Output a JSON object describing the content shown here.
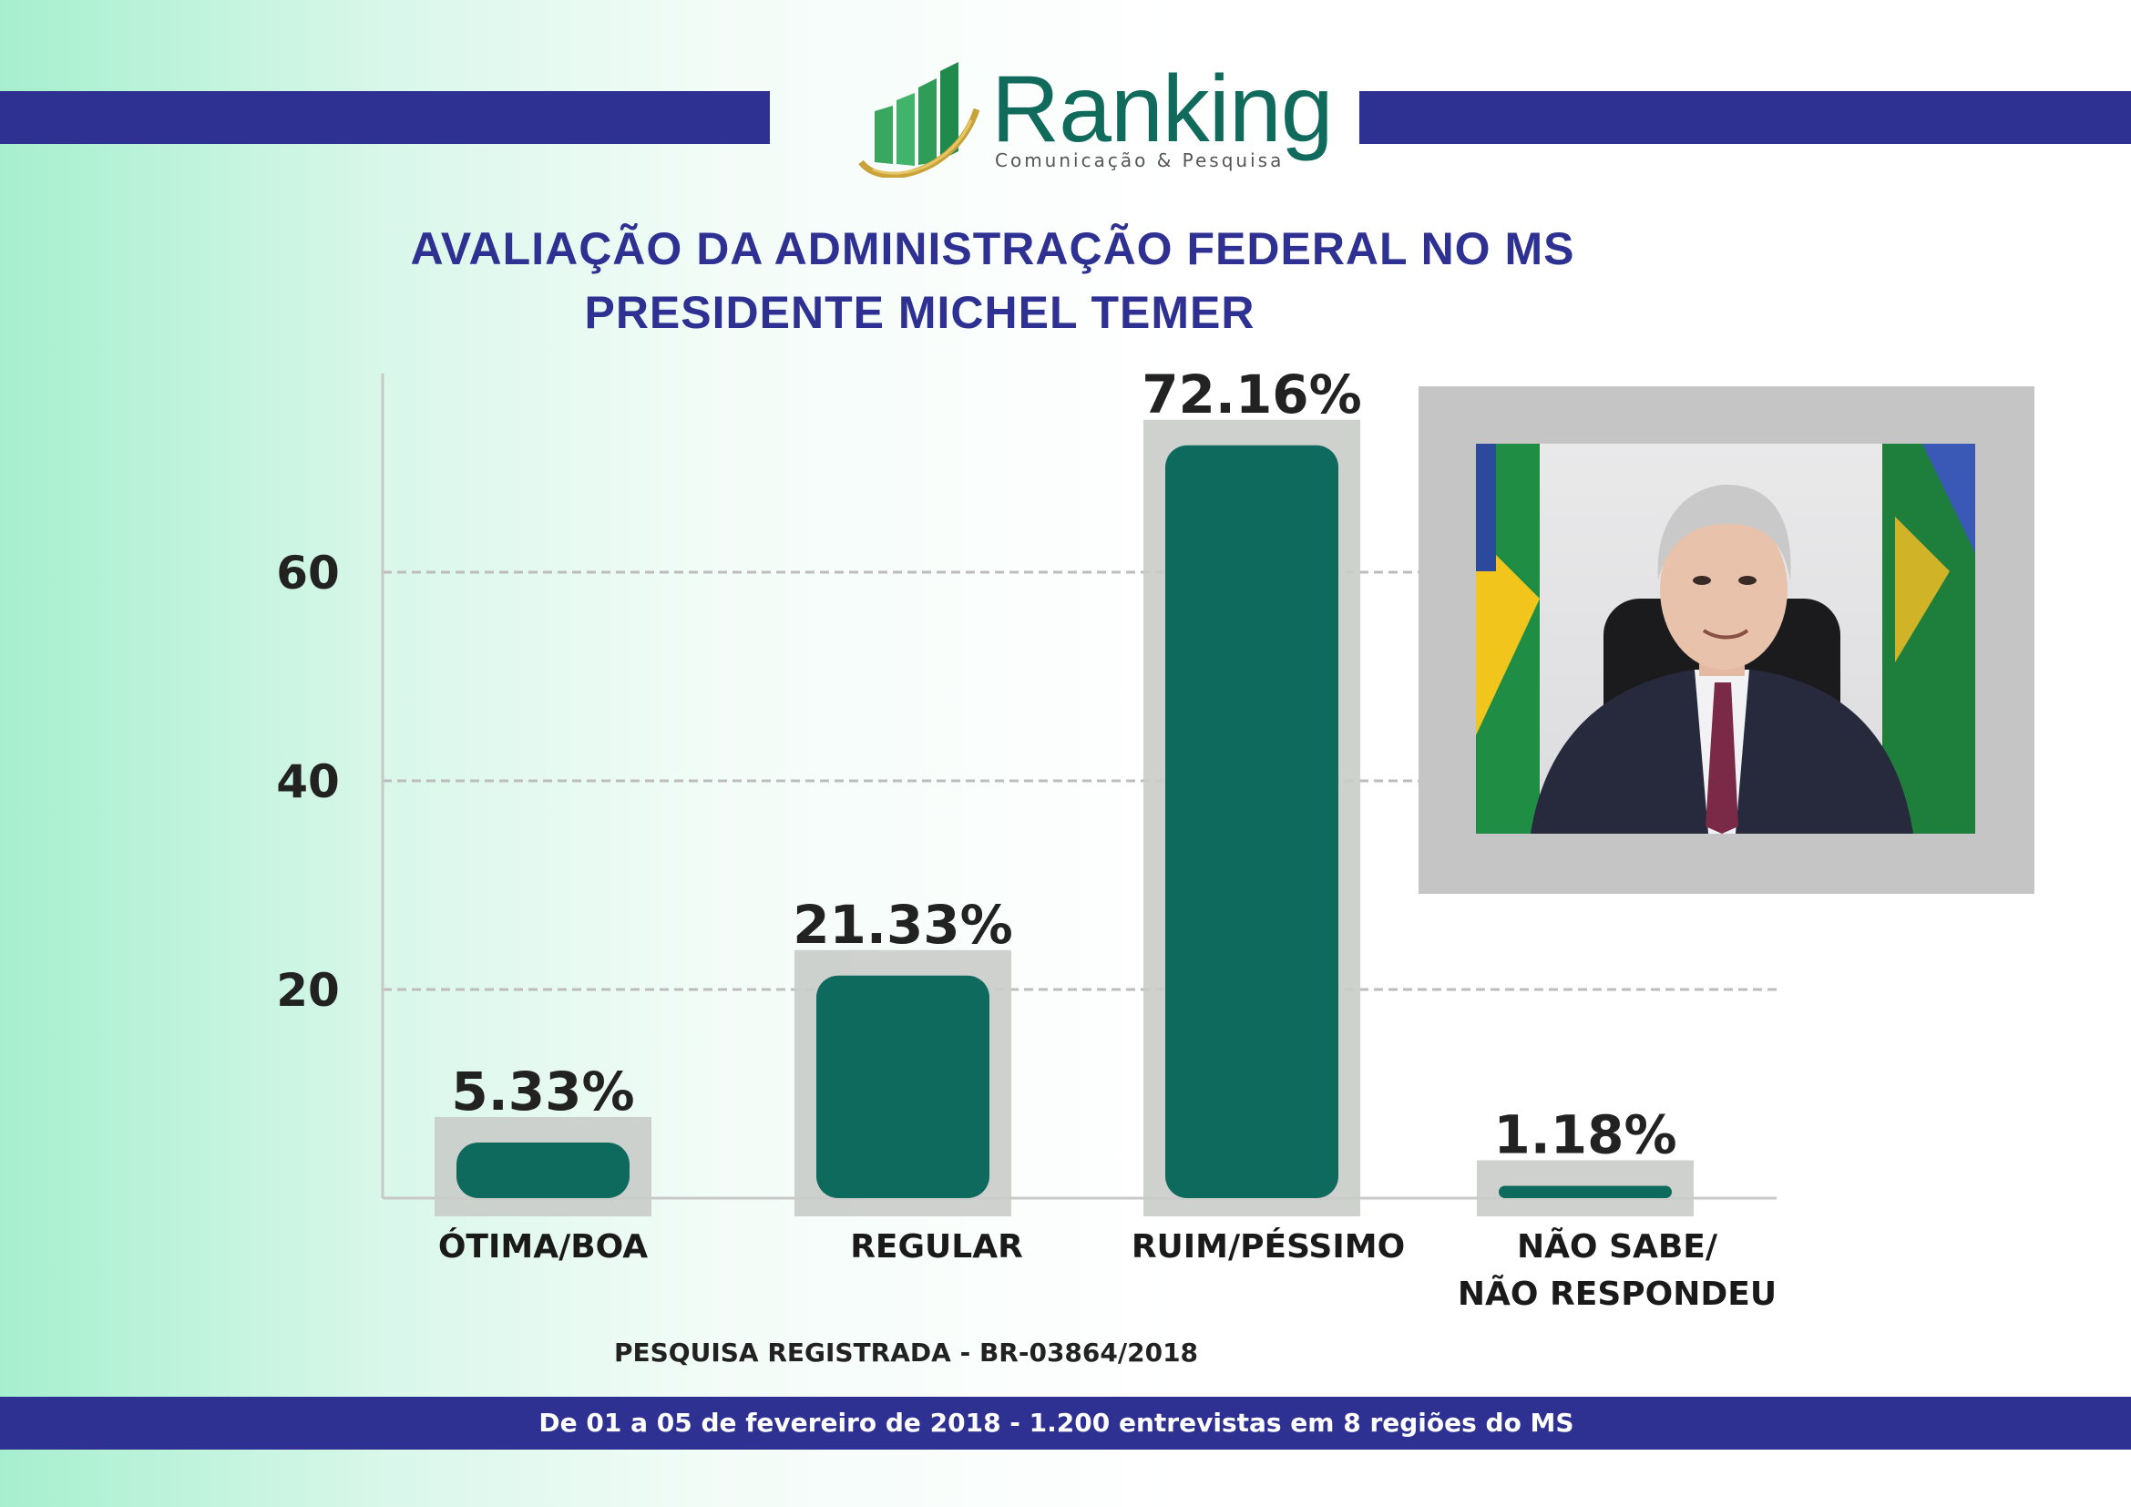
{
  "brand": {
    "name": "Ranking",
    "tagline": "Comunicação & Pesquisa",
    "colors": {
      "navy": "#2e3192",
      "green": "#106b5c"
    }
  },
  "title": {
    "line1": "AVALIAÇÃO DA ADMINISTRAÇÃO FEDERAL NO MS",
    "line2": "PRESIDENTE MICHEL TEMER"
  },
  "chart_data": {
    "type": "bar",
    "categories": [
      "ÓTIMA/BOA",
      "REGULAR",
      "RUIM/PÉSSIMO",
      "NÃO SABE/\nNÃO RESPONDEU"
    ],
    "values": [
      5.33,
      21.33,
      72.16,
      1.18
    ],
    "value_labels": [
      "5.33%",
      "21.33%",
      "72.16%",
      "1.18%"
    ],
    "y_ticks": [
      20,
      40,
      60
    ],
    "ylim": [
      0,
      80
    ],
    "grid": true,
    "bar_color": "#0e6a5c",
    "shadow_color": "#c9ccc9"
  },
  "photo": {
    "subject_icon": "portrait-photo"
  },
  "footer": {
    "registered": "PESQUISA REGISTRADA - BR-03864/2018",
    "details": "De 01 a 05 de fevereiro de 2018 - 1.200 entrevistas em 8 regiões do MS"
  }
}
